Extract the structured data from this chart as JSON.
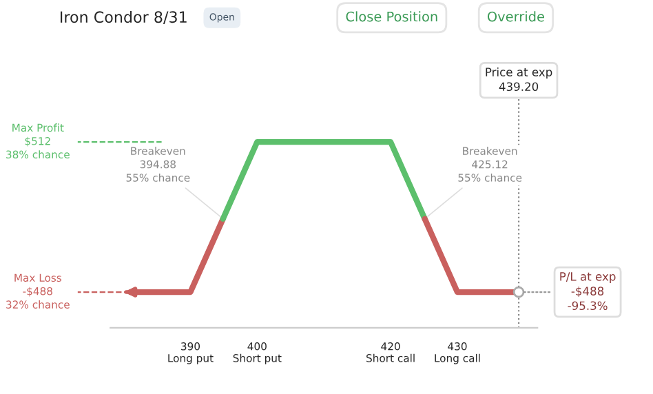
{
  "chart_data": {
    "type": "line",
    "title": "Iron Condor 8/31",
    "series": [
      {
        "color": "#c9605e",
        "values": [
          -488,
          -488,
          0
        ],
        "x": [
          381,
          390,
          394.88
        ]
      },
      {
        "color": "#5cbf6c",
        "values": [
          0,
          512,
          512,
          0
        ],
        "x": [
          394.88,
          400,
          420,
          425.12
        ]
      },
      {
        "color": "#c9605e",
        "values": [
          0,
          -488,
          -488
        ],
        "x": [
          425.12,
          430,
          439.2
        ]
      }
    ],
    "xlim": [
      378,
      442
    ],
    "ylim": [
      -726,
      815
    ],
    "xticks": [
      {
        "value": 390,
        "label": "390\nLong put"
      },
      {
        "value": 400,
        "label": "400\nShort put"
      },
      {
        "value": 420,
        "label": "420\nShort call"
      },
      {
        "value": 430,
        "label": "430\nLong call"
      }
    ],
    "tick_labels": "x",
    "grid": false,
    "legend": false,
    "marker": "none",
    "line_style": "solid",
    "ref_lines": [
      {
        "axis": "y",
        "value": 512,
        "label": "Max Profit\n$512\n38% chance",
        "color": "#5cbf6c",
        "line_style": "dashed"
      },
      {
        "axis": "y",
        "value": -488,
        "label": "Max Loss\n-$488\n32% chance",
        "color": "#c9605e",
        "line_style": "dashed"
      },
      {
        "axis": "x",
        "value": 439.2,
        "label": "Price at exp\n439.20",
        "color": "#888888",
        "line_style": "dotted"
      }
    ],
    "annotations": [
      {
        "text": "Breakeven\n394.88\n55% chance",
        "x": 394.88,
        "y": 0
      },
      {
        "text": "Breakeven\n425.12\n55% chance",
        "x": 425.12,
        "y": 0
      },
      {
        "text": "P/L at exp\n-$488\n-95.3%",
        "x": 439.2,
        "y": -488
      },
      "Open",
      "Close Position",
      "Override"
    ]
  }
}
